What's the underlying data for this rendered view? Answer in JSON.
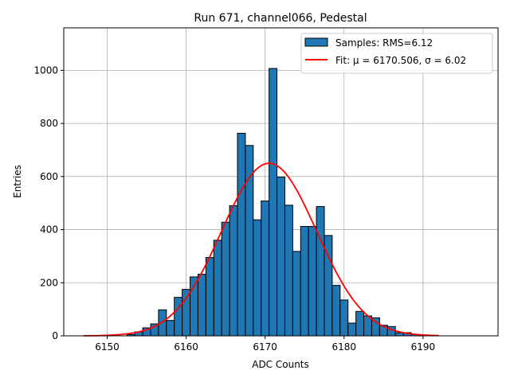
{
  "chart_data": {
    "type": "bar",
    "title": "Run 671, channel066, Pedestal",
    "xlabel": "ADC Counts",
    "ylabel": "Entries",
    "xlim": [
      6144.5,
      6199.5
    ],
    "ylim": [
      0,
      1160
    ],
    "grid": true,
    "legend_position": "top-right",
    "xticks": [
      6150,
      6160,
      6170,
      6180,
      6190
    ],
    "yticks": [
      0,
      200,
      400,
      600,
      800,
      1000
    ],
    "bar_color": "#1f77b4",
    "fit_color": "#ff0000",
    "histogram": {
      "name": "Samples: RMS=6.12",
      "bin_width": 1,
      "bins": [
        6153,
        6154,
        6155,
        6156,
        6157,
        6158,
        6159,
        6160,
        6161,
        6162,
        6163,
        6164,
        6165,
        6166,
        6167,
        6168,
        6169,
        6170,
        6171,
        6172,
        6173,
        6174,
        6175,
        6176,
        6177,
        6178,
        6179,
        6180,
        6181,
        6182,
        6183,
        6184,
        6185,
        6186,
        6187,
        6188,
        6189
      ],
      "values": [
        5,
        15,
        30,
        45,
        98,
        58,
        145,
        175,
        222,
        232,
        295,
        360,
        428,
        490,
        763,
        717,
        437,
        508,
        1007,
        598,
        492,
        318,
        412,
        412,
        487,
        378,
        190,
        135,
        48,
        92,
        75,
        68,
        40,
        35,
        12,
        12,
        5
      ]
    },
    "fit": {
      "name": "Fit: μ = 6170.506, σ = 6.02",
      "x_start": 6147,
      "x_end": 6192,
      "mu": 6170.506,
      "sigma": 6.02,
      "amplitude": 650
    }
  }
}
